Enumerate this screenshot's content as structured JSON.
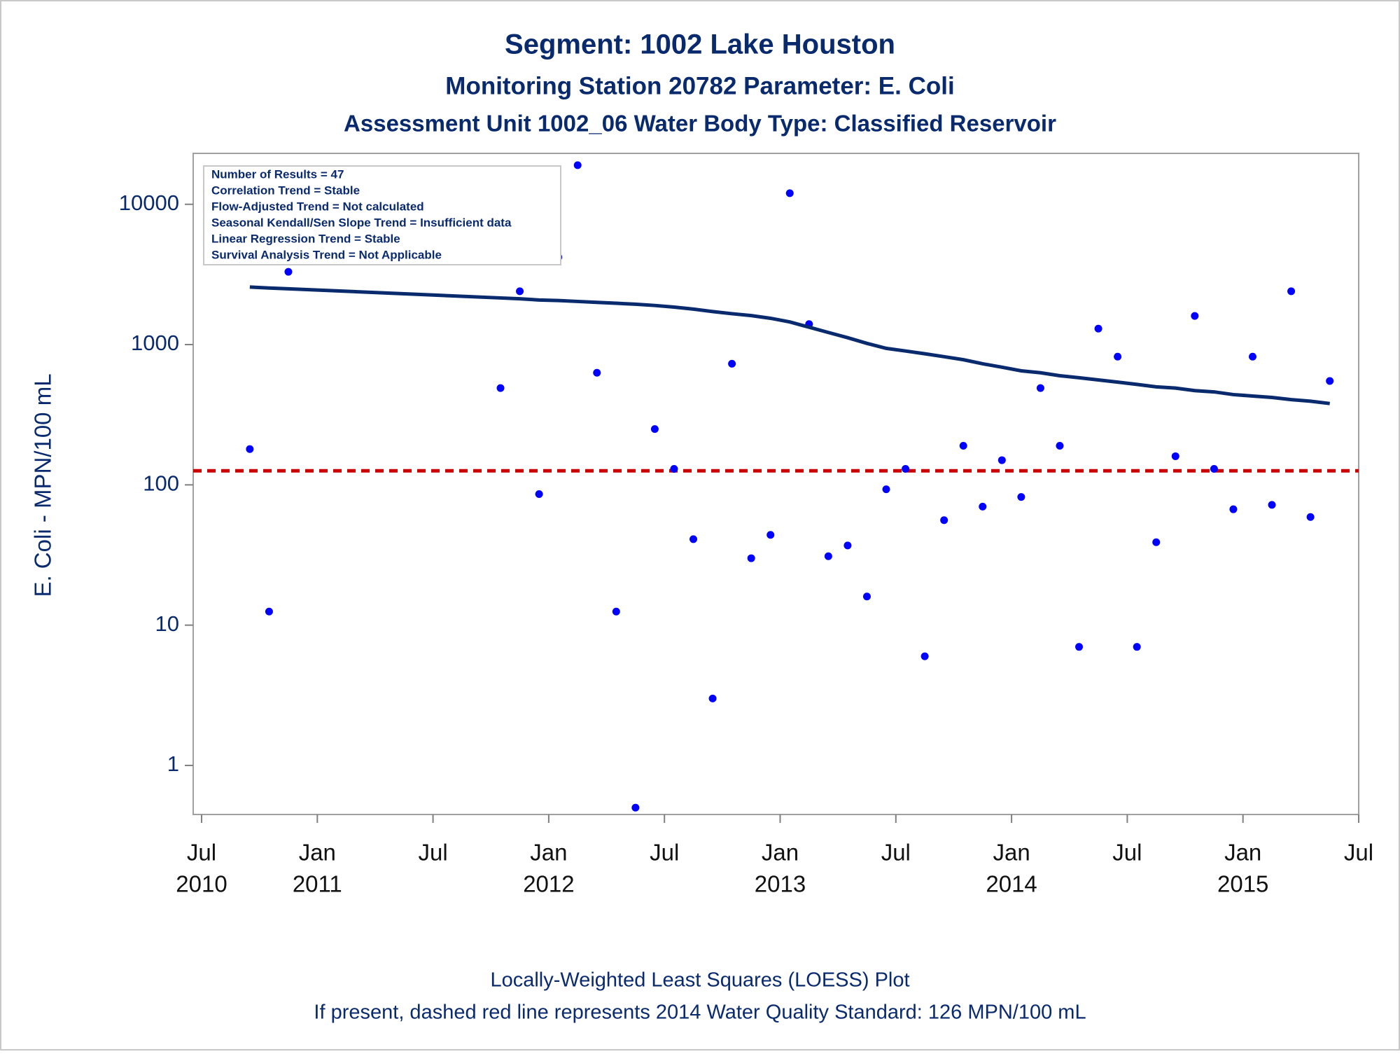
{
  "chart_data": {
    "type": "scatter",
    "title": "Segment: 1002  Lake Houston",
    "subtitles": [
      "Monitoring Station 20782 Parameter: E. Coli",
      "Assessment Unit 1002_06   Water Body Type: Classified Reservoir"
    ],
    "ylabel": "E. Coli - MPN/100 mL",
    "annotations": [
      "Number of Results = 47",
      "Correlation Trend = Stable",
      "Flow-Adjusted Trend = Not calculated",
      "Seasonal Kendall/Sen Slope Trend = Insufficient data",
      "Linear Regression Trend = Stable",
      "Survival Analysis Trend = Not Applicable"
    ],
    "footnotes": [
      "Locally-Weighted Least Squares (LOESS) Plot",
      "If present, dashed red line represents 2014 Water Quality Standard: 126 MPN/100 mL"
    ],
    "x": [
      "2010-09",
      "2010-10",
      "2010-11",
      "2011-10",
      "2011-11",
      "2011-12",
      "2012-01",
      "2012-02",
      "2012-03",
      "2012-04",
      "2012-05",
      "2012-06",
      "2012-07",
      "2012-08",
      "2012-09",
      "2012-10",
      "2012-11",
      "2012-12",
      "2013-01",
      "2013-02",
      "2013-03",
      "2013-04",
      "2013-05",
      "2013-06",
      "2013-07",
      "2013-08",
      "2013-09",
      "2013-10",
      "2013-11",
      "2013-12",
      "2014-01",
      "2014-02",
      "2014-03",
      "2014-04",
      "2014-05",
      "2014-06",
      "2014-07",
      "2014-08",
      "2014-09",
      "2014-10",
      "2014-11",
      "2014-12",
      "2015-01",
      "2015-02",
      "2015-03",
      "2015-04",
      "2015-05"
    ],
    "series": [
      {
        "type": "scatter",
        "color": "#0000ff",
        "values": [
          180,
          12.5,
          3300,
          490,
          2400,
          86,
          4200,
          19000,
          630,
          12.5,
          0.5,
          250,
          130,
          41,
          3,
          730,
          30,
          44,
          12000,
          1400,
          31,
          37,
          16,
          93,
          130,
          6,
          56,
          190,
          70,
          150,
          82,
          490,
          190,
          7,
          1300,
          820,
          7,
          39,
          160,
          1600,
          130,
          67,
          820,
          72,
          2400,
          59,
          550
        ]
      },
      {
        "type": "line",
        "color": "#0a2a6e",
        "values": [
          2570,
          2530,
          2500,
          2150,
          2120,
          2080,
          2060,
          2030,
          2000,
          1970,
          1940,
          1900,
          1850,
          1790,
          1720,
          1660,
          1610,
          1540,
          1450,
          1330,
          1220,
          1120,
          1020,
          940,
          900,
          860,
          820,
          780,
          730,
          690,
          650,
          630,
          600,
          580,
          560,
          540,
          520,
          500,
          490,
          470,
          460,
          440,
          430,
          420,
          405,
          395,
          380
        ]
      }
    ],
    "reference_line": {
      "value": 126,
      "color": "#cc0000",
      "style": "dashed"
    },
    "yscale": "log",
    "ylim": [
      0.447,
      23070
    ],
    "yticks": [
      1,
      10,
      100,
      1000,
      10000
    ],
    "xlim": [
      "2010-07",
      "2015-07"
    ],
    "xticks": [
      {
        "value": "2010-07",
        "label": [
          "Jul",
          "2010"
        ]
      },
      {
        "value": "2011-01",
        "label": [
          "Jan",
          "2011"
        ]
      },
      {
        "value": "2011-07",
        "label": [
          "Jul"
        ]
      },
      {
        "value": "2012-01",
        "label": [
          "Jan",
          "2012"
        ]
      },
      {
        "value": "2012-07",
        "label": [
          "Jul"
        ]
      },
      {
        "value": "2013-01",
        "label": [
          "Jan",
          "2013"
        ]
      },
      {
        "value": "2013-07",
        "label": [
          "Jul"
        ]
      },
      {
        "value": "2014-01",
        "label": [
          "Jan",
          "2014"
        ]
      },
      {
        "value": "2014-07",
        "label": [
          "Jul"
        ]
      },
      {
        "value": "2015-01",
        "label": [
          "Jan",
          "2015"
        ]
      },
      {
        "value": "2015-07",
        "label": [
          "Jul"
        ]
      }
    ]
  }
}
